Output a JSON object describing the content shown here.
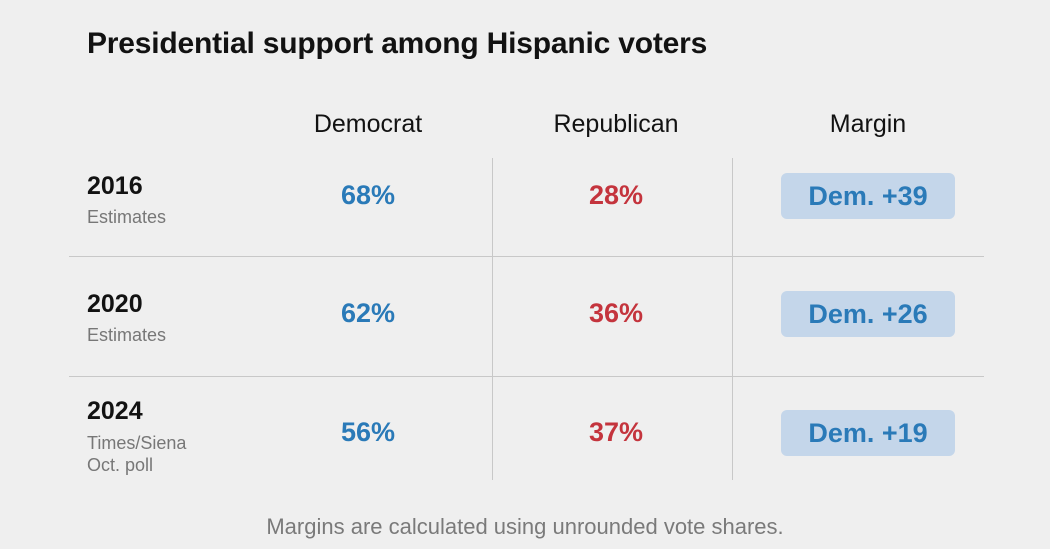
{
  "chart_data": {
    "type": "table",
    "title": "Presidential support among Hispanic voters",
    "columns": [
      "Democrat",
      "Republican",
      "Margin"
    ],
    "rows": [
      {
        "year": "2016",
        "source": [
          "Estimates"
        ],
        "democrat": "68%",
        "republican": "28%",
        "margin": "Dem. +39",
        "democrat_value": 68,
        "republican_value": 28,
        "margin_value": 39
      },
      {
        "year": "2020",
        "source": [
          "Estimates"
        ],
        "democrat": "62%",
        "republican": "36%",
        "margin": "Dem. +26",
        "democrat_value": 62,
        "republican_value": 36,
        "margin_value": 26
      },
      {
        "year": "2024",
        "source": [
          "Times/Siena",
          "Oct. poll"
        ],
        "democrat": "56%",
        "republican": "37%",
        "margin": "Dem. +19",
        "democrat_value": 56,
        "republican_value": 37,
        "margin_value": 19
      }
    ],
    "note": "Margins are calculated using unrounded vote shares."
  },
  "colors": {
    "democrat": "#2a7ab8",
    "republican": "#c4343d",
    "margin_background": "#c4d6ea",
    "background": "#efefef"
  }
}
